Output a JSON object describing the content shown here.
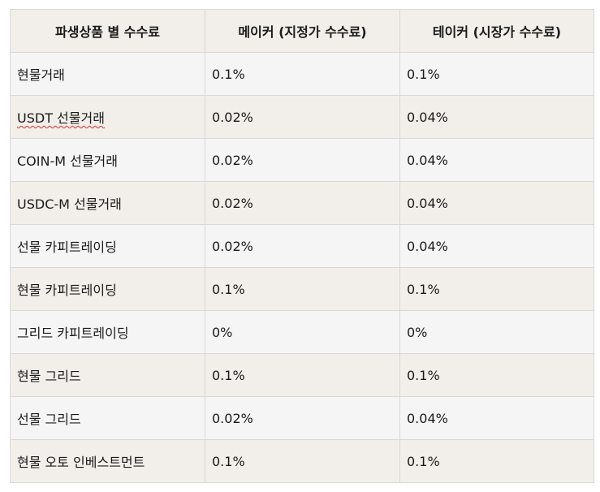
{
  "table": {
    "headers": [
      "파생상품 별 수수료",
      "메이커 (지정가 수수료)",
      "테이커 (시장가 수수료)"
    ],
    "rows": [
      {
        "product": "현물거래",
        "maker": "0.1%",
        "taker": "0.1%"
      },
      {
        "product": "USDT 선물거래",
        "maker": "0.02%",
        "taker": "0.04%"
      },
      {
        "product": "COIN-M 선물거래",
        "maker": "0.02%",
        "taker": "0.04%"
      },
      {
        "product": "USDC-M 선물거래",
        "maker": "0.02%",
        "taker": "0.04%"
      },
      {
        "product": "선물 카피트레이딩",
        "maker": "0.02%",
        "taker": "0.04%"
      },
      {
        "product": "현물 카피트레이딩",
        "maker": "0.1%",
        "taker": "0.1%"
      },
      {
        "product": "그리드 카피트레이딩",
        "maker": "0%",
        "taker": "0%"
      },
      {
        "product": "현물 그리드",
        "maker": "0.1%",
        "taker": "0.1%"
      },
      {
        "product": "선물 그리드",
        "maker": "0.02%",
        "taker": "0.04%"
      },
      {
        "product": "현물 오토 인베스트먼트",
        "maker": "0.1%",
        "taker": "0.1%"
      }
    ]
  },
  "colors": {
    "header_bg": "#f2efea",
    "row_bg_a": "#f5f5f5",
    "row_bg_b": "#f2efea",
    "border": "#d8d8d8",
    "spellcheck": "#e03030"
  }
}
